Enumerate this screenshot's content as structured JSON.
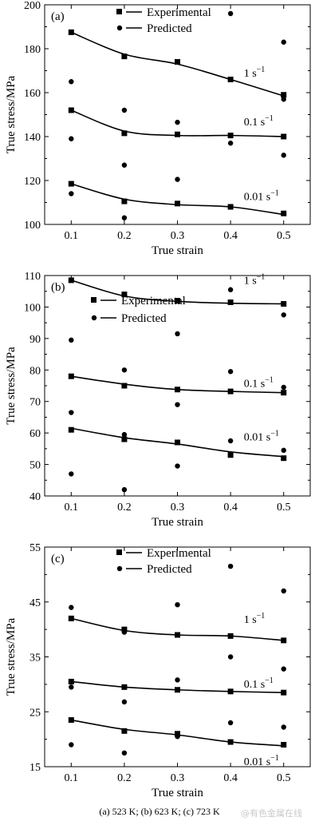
{
  "caption": "(a) 523 K; (b) 623 K; (c) 723 K",
  "watermark": "@有色金属在线",
  "chart_data": [
    {
      "type": "scatter",
      "panel": "(a)",
      "xlabel": "True strain",
      "ylabel": "True stress/MPa",
      "xlim": [
        0.05,
        0.55
      ],
      "ylim": [
        100,
        200
      ],
      "xticks": [
        0.1,
        0.2,
        0.3,
        0.4,
        0.5
      ],
      "yticks": [
        100,
        120,
        140,
        160,
        180,
        200
      ],
      "legend": {
        "experimental": "Experimental",
        "predicted": "Predicted"
      },
      "legend_position": "top",
      "grid": false,
      "x": [
        0.1,
        0.2,
        0.3,
        0.4,
        0.5
      ],
      "series": [
        {
          "rate": "1 s",
          "sup": "−1",
          "experimental": [
            187.5,
            176.5,
            174.0,
            166.0,
            159.0
          ],
          "fit": [
            187.5,
            177.5,
            173.0,
            166.0,
            158.5
          ],
          "predicted": [
            165.0,
            152.0,
            146.5,
            196.0,
            157.0
          ]
        },
        {
          "rate": "0.1 s",
          "sup": "−1",
          "experimental": [
            152.0,
            141.5,
            141.0,
            140.5,
            140.0
          ],
          "fit": [
            152.0,
            142.5,
            140.5,
            140.5,
            140.0
          ],
          "predicted": [
            139.0,
            127.0,
            120.5,
            137.0,
            131.5
          ]
        },
        {
          "rate": "0.01 s",
          "sup": "−1",
          "experimental": [
            118.5,
            110.5,
            109.5,
            108.0,
            105.0
          ],
          "fit": [
            118.5,
            111.5,
            109.0,
            108.0,
            104.5
          ],
          "predicted": [
            114.0,
            103.0,
            null,
            null,
            null
          ]
        }
      ],
      "extra_predicted": [
        [
          0.5,
          183.0
        ]
      ],
      "rate_label_pos": [
        "mid",
        "mid",
        "mid"
      ]
    },
    {
      "type": "scatter",
      "panel": "(b)",
      "xlabel": "True strain",
      "ylabel": "True stress/MPa",
      "xlim": [
        0.05,
        0.55
      ],
      "ylim": [
        40,
        110
      ],
      "xticks": [
        0.1,
        0.2,
        0.3,
        0.4,
        0.5
      ],
      "yticks": [
        40,
        50,
        60,
        70,
        80,
        90,
        100,
        110
      ],
      "legend": {
        "experimental": "Experimental",
        "predicted": "Predicted"
      },
      "legend_position": "top",
      "grid": false,
      "x": [
        0.1,
        0.2,
        0.3,
        0.4,
        0.5
      ],
      "series": [
        {
          "rate": "1 s",
          "sup": "−1",
          "experimental": [
            108.5,
            104.0,
            102.0,
            101.5,
            101.0
          ],
          "fit": [
            108.5,
            103.5,
            101.8,
            101.2,
            101.0
          ],
          "predicted": [
            89.5,
            null,
            91.5,
            105.5,
            97.5
          ]
        },
        {
          "rate": "0.1 s",
          "sup": "−1",
          "experimental": [
            78.0,
            75.0,
            73.8,
            73.2,
            72.8
          ],
          "fit": [
            78.0,
            75.5,
            73.8,
            73.2,
            72.8
          ],
          "predicted": [
            66.5,
            80.0,
            69.0,
            79.5,
            74.5
          ]
        },
        {
          "rate": "0.01 s",
          "sup": "−1",
          "experimental": [
            61.0,
            58.0,
            57.0,
            53.0,
            52.0
          ],
          "fit": [
            61.5,
            58.5,
            56.5,
            54.0,
            52.5
          ],
          "predicted": [
            47.0,
            59.5,
            49.5,
            57.5,
            54.5
          ]
        }
      ],
      "extra_predicted": [
        [
          0.2,
          42.0
        ]
      ]
    },
    {
      "type": "scatter",
      "panel": "(c)",
      "xlabel": "True strain",
      "ylabel": "True stress/MPa",
      "xlim": [
        0.05,
        0.55
      ],
      "ylim": [
        15,
        55
      ],
      "xticks": [
        0.1,
        0.2,
        0.3,
        0.4,
        0.5
      ],
      "yticks": [
        15,
        25,
        35,
        45,
        55
      ],
      "legend": {
        "experimental": "Experimental",
        "predicted": "Predicted"
      },
      "legend_position": "top",
      "grid": false,
      "x": [
        0.1,
        0.2,
        0.3,
        0.4,
        0.5
      ],
      "series": [
        {
          "rate": "1 s",
          "sup": "−1",
          "experimental": [
            42.0,
            40.0,
            39.0,
            38.8,
            38.0
          ],
          "fit": [
            42.0,
            39.8,
            39.0,
            38.8,
            38.0
          ],
          "predicted": [
            44.0,
            39.5,
            44.5,
            51.5,
            47.0
          ]
        },
        {
          "rate": "0.1 s",
          "sup": "−1",
          "experimental": [
            30.5,
            29.5,
            29.0,
            28.7,
            28.5
          ],
          "fit": [
            30.5,
            29.5,
            29.0,
            28.7,
            28.5
          ],
          "predicted": [
            29.5,
            26.8,
            30.8,
            35.0,
            32.8
          ]
        },
        {
          "rate": "0.01 s",
          "sup": "−1",
          "experimental": [
            23.5,
            21.5,
            21.0,
            19.5,
            19.0
          ],
          "fit": [
            23.5,
            21.8,
            20.8,
            19.5,
            18.8
          ],
          "predicted": [
            19.0,
            17.5,
            20.5,
            23.0,
            22.2
          ]
        }
      ],
      "extra_predicted": []
    }
  ]
}
